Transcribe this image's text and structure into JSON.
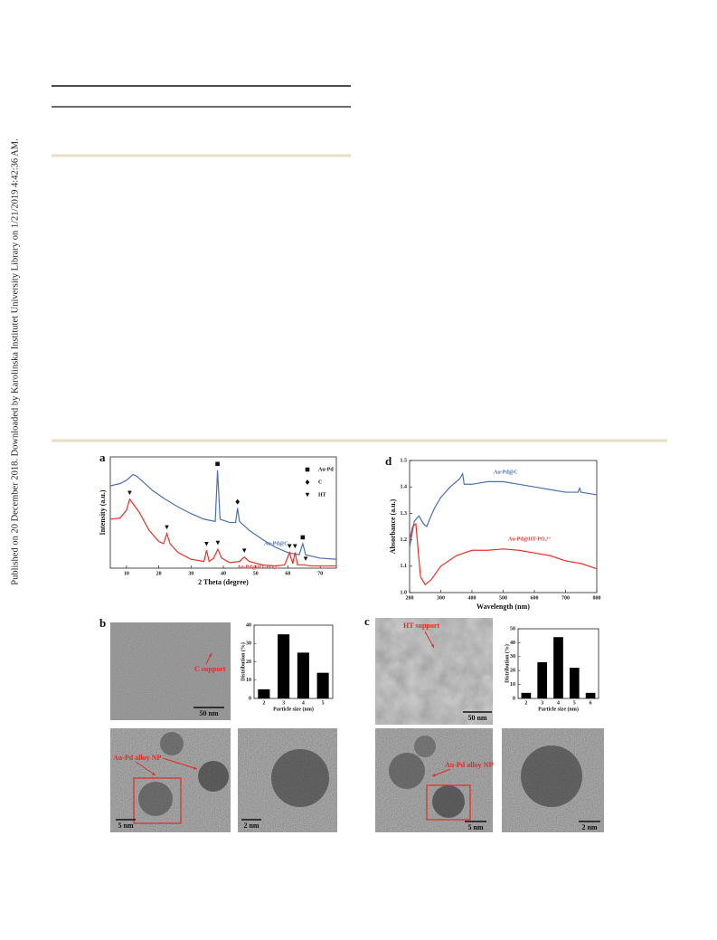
{
  "sidebar": "Published on 20 December 2018. Downloaded by Karolinska Institutet University Library on 1/21/2019 4:42:36 AM.",
  "figure": {
    "a": {
      "label": "a",
      "type": "line",
      "xlabel": "2 Theta (degree)",
      "ylabel": "Intensity (a.u.)",
      "xlim": [
        5,
        75
      ],
      "ylim": [
        0,
        100
      ],
      "xticks": [
        10,
        20,
        30,
        40,
        50,
        60,
        70
      ],
      "series": [
        {
          "name": "Au-Pd@C",
          "color": "#4a6fb5",
          "x": [
            5,
            8,
            10,
            12,
            13,
            15,
            18,
            22,
            26,
            30,
            34,
            37.5,
            38.2,
            39,
            42,
            43.8,
            44.4,
            45,
            48,
            52,
            56,
            60,
            63.5,
            64.6,
            65.5,
            70,
            75
          ],
          "values": [
            74,
            76,
            79,
            84,
            83,
            78,
            70,
            62,
            55,
            49,
            44,
            42,
            88,
            44,
            41,
            41,
            54,
            42,
            34,
            26,
            19,
            14,
            12,
            22,
            12,
            9,
            8
          ],
          "markers": [
            {
              "symbol": "square",
              "x": [
                38.2,
                64.6
              ]
            },
            {
              "symbol": "diamond",
              "x": [
                44.4
              ]
            }
          ]
        },
        {
          "name": "Au-Pd@HT-PO₄³⁻",
          "color": "#e8312a",
          "x": [
            5,
            8,
            10,
            11,
            12,
            14,
            17,
            20,
            21.5,
            22.5,
            23.5,
            26,
            30,
            34,
            34.8,
            35.6,
            37,
            38.3,
            39.5,
            42,
            45,
            46.5,
            48,
            52,
            56,
            59,
            60.5,
            61.5,
            62.2,
            63,
            65,
            67,
            70,
            75
          ],
          "values": [
            44,
            45,
            52,
            62,
            58,
            50,
            34,
            24,
            22,
            31,
            22,
            14,
            8,
            6,
            16,
            6,
            9,
            17,
            9,
            5,
            6,
            10,
            6,
            3,
            2,
            3,
            14,
            4,
            14,
            3,
            3,
            2,
            2,
            2
          ],
          "markers": [
            {
              "symbol": "triangle",
              "x": [
                11,
                22.5,
                34.8,
                38.3,
                46.5,
                60.5,
                62.2,
                65.5
              ]
            }
          ]
        }
      ],
      "legend": [
        {
          "name": "Au-Pd",
          "symbol": "square"
        },
        {
          "name": "C",
          "symbol": "diamond"
        },
        {
          "name": "HT",
          "symbol": "triangle"
        }
      ]
    },
    "d": {
      "label": "d",
      "type": "line",
      "xlabel": "Wavelength (nm)",
      "ylabel": "Absorbance (a.u.)",
      "xlim": [
        200,
        800
      ],
      "ylim": [
        1,
        1.5
      ],
      "xticks": [
        200,
        300,
        400,
        500,
        600,
        700,
        800
      ],
      "yticks": [
        {
          "value": 1,
          "label": "1.0"
        },
        {
          "value": 1.1,
          "label": "1.1"
        },
        {
          "value": 1.2,
          "label": "1.2"
        },
        {
          "value": 1.3,
          "label": "1.3"
        },
        {
          "value": 1.4,
          "label": "1.4"
        },
        {
          "value": 1.5,
          "label": "1.5"
        }
      ],
      "series": [
        {
          "name": "Au-Pd@C",
          "color": "#4a6fb5",
          "x": [
            200,
            215,
            230,
            245,
            255,
            265,
            280,
            300,
            330,
            350,
            360,
            370,
            375,
            380,
            400,
            450,
            500,
            550,
            600,
            650,
            700,
            740,
            745,
            750,
            800
          ],
          "values": [
            1.17,
            1.27,
            1.29,
            1.26,
            1.25,
            1.28,
            1.32,
            1.36,
            1.4,
            1.42,
            1.43,
            1.45,
            1.41,
            1.41,
            1.41,
            1.42,
            1.42,
            1.41,
            1.4,
            1.39,
            1.38,
            1.38,
            1.395,
            1.38,
            1.37
          ]
        },
        {
          "name": "Au-Pd@HT-PO₄³⁻",
          "color": "#e8312a",
          "x": [
            200,
            210,
            220,
            235,
            250,
            270,
            300,
            350,
            400,
            450,
            500,
            550,
            600,
            650,
            700,
            750,
            800
          ],
          "values": [
            1.2,
            1.25,
            1.26,
            1.06,
            1.03,
            1.05,
            1.1,
            1.14,
            1.16,
            1.16,
            1.165,
            1.16,
            1.15,
            1.14,
            1.12,
            1.11,
            1.09
          ]
        }
      ]
    },
    "b": {
      "label": "b",
      "type": "bar",
      "xlabel": "Particle size (nm)",
      "ylabel": "Distribution (%)",
      "categories": [
        "2",
        "3",
        "4",
        "5"
      ],
      "values": [
        5,
        35,
        25,
        14
      ],
      "color": "#000000",
      "ylim": [
        0,
        40
      ],
      "yticks": [
        0,
        10,
        20,
        30,
        40
      ],
      "images": [
        {
          "annotation": "C support",
          "scale": "50 nm"
        },
        {
          "annotation": "Au-Pd alloy NP",
          "scale": "5 nm"
        },
        {
          "scale": "2 nm"
        }
      ]
    },
    "c": {
      "label": "c",
      "type": "bar",
      "xlabel": "Particle size (nm)",
      "ylabel": "Distribution (%)",
      "categories": [
        "2",
        "3",
        "4",
        "5",
        "6"
      ],
      "values": [
        4,
        26,
        44,
        22,
        4
      ],
      "color": "#000000",
      "ylim": [
        0,
        50
      ],
      "yticks": [
        0,
        10,
        20,
        30,
        40,
        50
      ],
      "images": [
        {
          "annotation": "HT support",
          "scale": "50 nm"
        },
        {
          "annotation": "Au-Pd alloy NP",
          "scale": "5 nm"
        },
        {
          "scale": "2 nm"
        }
      ]
    }
  }
}
